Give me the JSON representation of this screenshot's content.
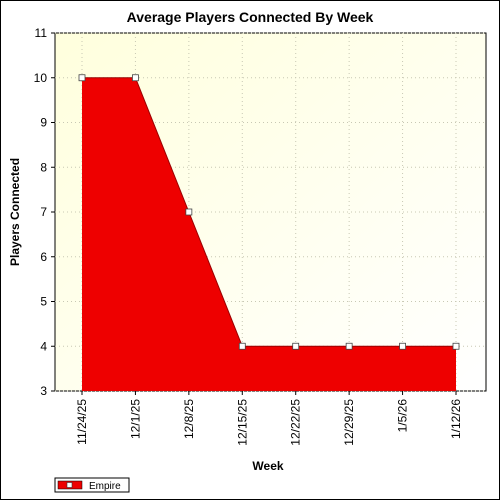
{
  "chart_data": {
    "type": "area",
    "title": "Average Players Connected By Week",
    "xlabel": "Week",
    "ylabel": "Players Connected",
    "categories": [
      "11/24/25",
      "12/1/25",
      "12/8/25",
      "12/15/25",
      "12/22/25",
      "12/29/25",
      "1/5/26",
      "1/12/26"
    ],
    "series": [
      {
        "name": "Empire",
        "values": [
          10,
          10,
          7,
          4,
          4,
          4,
          4,
          4
        ],
        "color": "#ee0000"
      }
    ],
    "ylim": [
      3,
      11
    ],
    "yticks": [
      3,
      4,
      5,
      6,
      7,
      8,
      9,
      10,
      11
    ],
    "grid": true,
    "legend_position": "bottom-left",
    "background_gradient": [
      "#ffffdd",
      "#ffffff"
    ]
  }
}
